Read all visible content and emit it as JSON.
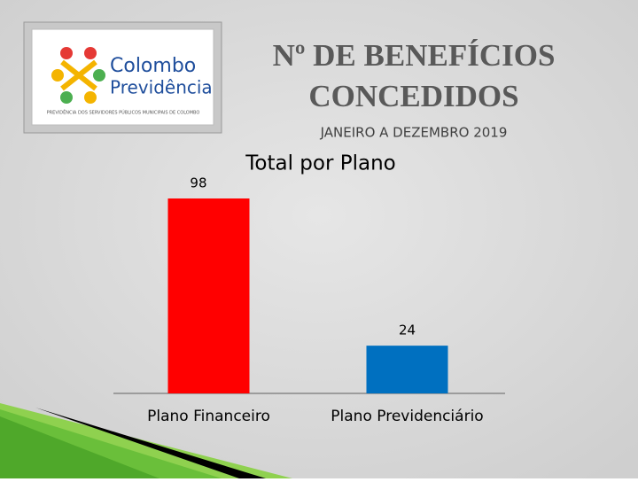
{
  "slide": {
    "title_lines": [
      "Nº DE BENEFÍCIOS",
      "CONCEDIDOS"
    ],
    "subtitle": "JANEIRO A DEZEMBRO 2019",
    "logo": {
      "name_top": "Colombo",
      "name_bottom": "Previdência",
      "tagline": "PREVIDÊNCIA DOS SERVIDORES PÚBLICOS MUNICIPAIS DE COLOMBO"
    }
  },
  "chart_data": {
    "type": "bar",
    "title": "Total por Plano",
    "categories": [
      "Plano Financeiro",
      "Plano Previdenciário"
    ],
    "values": [
      98,
      24
    ],
    "colors": [
      "#ff0000",
      "#0070c0"
    ]
  }
}
